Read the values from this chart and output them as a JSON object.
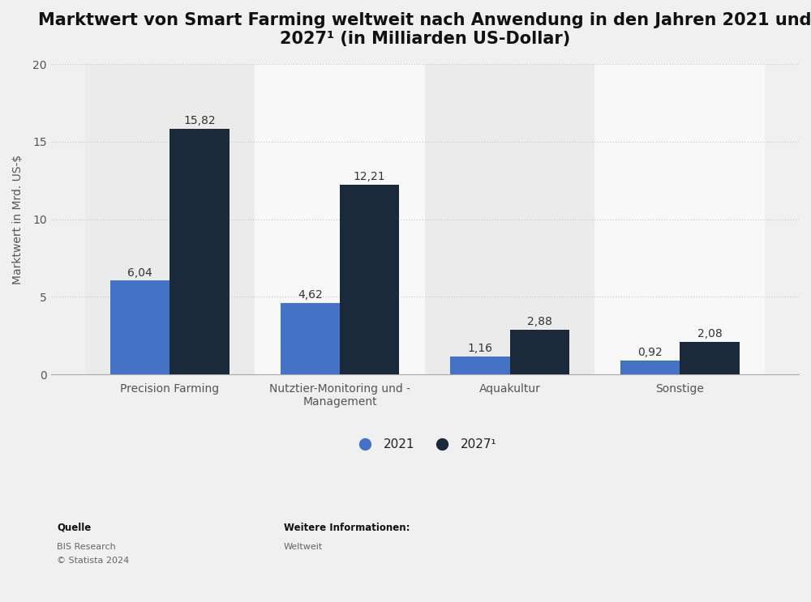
{
  "title": "Marktwert von Smart Farming weltweit nach Anwendung in den Jahren 2021 und\n2027¹ (in Milliarden US-Dollar)",
  "categories": [
    "Precision Farming",
    "Nutztier-Monitoring und -\nManagement",
    "Aquakultur",
    "Sonstige"
  ],
  "values_2021": [
    6.04,
    4.62,
    1.16,
    0.92
  ],
  "values_2027": [
    15.82,
    12.21,
    2.88,
    2.08
  ],
  "color_2021": "#4472C4",
  "color_2027": "#1B2A3B",
  "ylabel": "Marktwert in Mrd. US-$",
  "ylim": [
    0,
    20
  ],
  "yticks": [
    0,
    5,
    10,
    15,
    20
  ],
  "legend_labels": [
    "2021",
    "2027¹"
  ],
  "bar_width": 0.35,
  "background_color": "#f0f0f0",
  "plot_bg_color": "#ffffff",
  "title_fontsize": 15,
  "label_fontsize": 10,
  "tick_fontsize": 10,
  "grid_color": "#cccccc",
  "col_bg_odd": "#ebebeb",
  "col_bg_even": "#f8f8f8"
}
